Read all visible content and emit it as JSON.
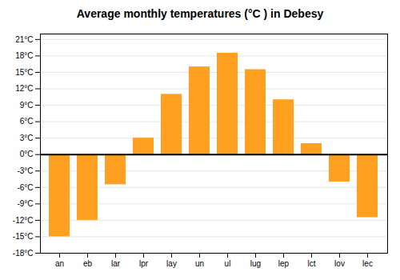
{
  "chart_data": {
    "type": "bar",
    "title": "Average monthly temperatures (°C ) in Debesy",
    "categories": [
      "an",
      "eb",
      "lar",
      "lpr",
      "lay",
      "un",
      "ul",
      "lug",
      "lep",
      "lct",
      "lov",
      "lec"
    ],
    "values": [
      -15,
      -12,
      -5.5,
      3,
      11,
      16,
      18.5,
      15.5,
      10,
      2,
      -5,
      -11.5
    ],
    "color": "#FFA020",
    "ylim": [
      -18,
      22
    ],
    "yticks": [
      {
        "value": -18,
        "label": "-18°C"
      },
      {
        "value": -15,
        "label": "-15°C"
      },
      {
        "value": -12,
        "label": "-12°C"
      },
      {
        "value": -9,
        "label": "-9°C"
      },
      {
        "value": -6,
        "label": "-6°C"
      },
      {
        "value": -3,
        "label": "-3°C"
      },
      {
        "value": 0,
        "label": "0°C"
      },
      {
        "value": 3,
        "label": "3°C"
      },
      {
        "value": 6,
        "label": "6°C"
      },
      {
        "value": 9,
        "label": "9°C"
      },
      {
        "value": 12,
        "label": "12°C"
      },
      {
        "value": 15,
        "label": "15°C"
      },
      {
        "value": 18,
        "label": "18°C"
      },
      {
        "value": 21,
        "label": "21°C"
      }
    ],
    "grid": true
  }
}
